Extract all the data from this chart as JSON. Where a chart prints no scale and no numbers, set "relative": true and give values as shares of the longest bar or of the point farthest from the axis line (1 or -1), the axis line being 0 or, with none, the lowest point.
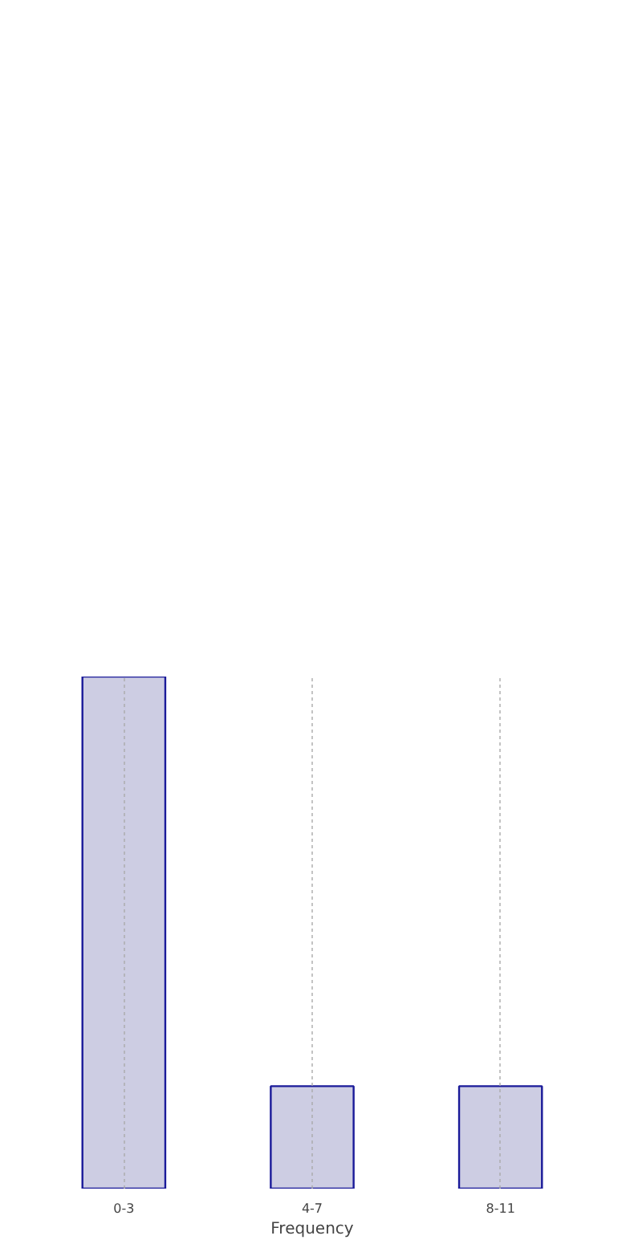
{
  "chart_data": {
    "type": "bar",
    "relative": true,
    "xlabel": "Frequency",
    "categories": [
      "0-3",
      "4-7",
      "8-11"
    ],
    "values": [
      1,
      0.2,
      0.2
    ],
    "color": "#cdcde3",
    "grid": "x"
  }
}
